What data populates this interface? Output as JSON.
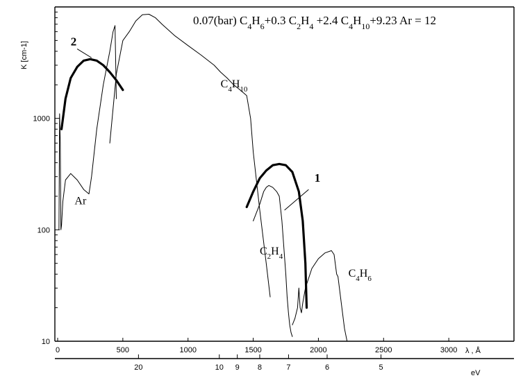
{
  "chart_data": {
    "type": "line",
    "title": "0.07(bar) C4H6+0.3 C2H4 +2.4 C4H10+9.23 Ar = 12",
    "ylabel": "K [cm-1]",
    "xlabel": "λ , Å",
    "xlabel_secondary": "eV",
    "y_scale": "log",
    "xlim": [
      0,
      3500
    ],
    "ylim": [
      10,
      10000
    ],
    "x_ticks": [
      0,
      500,
      1000,
      1500,
      2000,
      2500,
      3000
    ],
    "x_tick_labels": [
      "0",
      "500",
      "1000",
      "1500",
      "2000",
      "2500",
      "3000"
    ],
    "y_ticks": [
      10,
      100,
      1000
    ],
    "y_tick_labels": [
      "10",
      "100",
      "1000"
    ],
    "ev_ticks": [
      {
        "label": "20",
        "wavelength": 620
      },
      {
        "label": "10",
        "wavelength": 1240
      },
      {
        "label": "9",
        "wavelength": 1378
      },
      {
        "label": "8",
        "wavelength": 1550
      },
      {
        "label": "7",
        "wavelength": 1771
      },
      {
        "label": "6",
        "wavelength": 2067
      },
      {
        "label": "5",
        "wavelength": 2480
      }
    ],
    "series": [
      {
        "name": "Ar",
        "style": "thin",
        "x": [
          10,
          15,
          20,
          25,
          30,
          40,
          60,
          100,
          150,
          200,
          240,
          260,
          300,
          350,
          400,
          425,
          440,
          450
        ],
        "y": [
          100,
          1100,
          600,
          100,
          110,
          180,
          280,
          320,
          280,
          230,
          210,
          300,
          800,
          2000,
          4000,
          6000,
          6800,
          1500
        ]
      },
      {
        "name": "C4H10",
        "style": "thin",
        "x": [
          400,
          450,
          500,
          550,
          600,
          650,
          700,
          750,
          800,
          900,
          1000,
          1100,
          1200,
          1250,
          1300,
          1350,
          1400,
          1450,
          1480,
          1500,
          1550,
          1600,
          1630
        ],
        "y": [
          600,
          2500,
          5000,
          6000,
          7500,
          8500,
          8600,
          8000,
          7000,
          5500,
          4500,
          3700,
          3000,
          2600,
          2300,
          2000,
          1800,
          1600,
          1000,
          500,
          150,
          50,
          25
        ]
      },
      {
        "name": "C2H4",
        "style": "thin",
        "x": [
          1500,
          1550,
          1580,
          1600,
          1620,
          1650,
          1680,
          1700,
          1720,
          1750,
          1760,
          1770,
          1780,
          1790,
          1800
        ],
        "y": [
          120,
          170,
          220,
          240,
          250,
          240,
          220,
          200,
          120,
          40,
          25,
          18,
          14,
          12,
          11
        ]
      },
      {
        "name": "C4H6",
        "style": "thin",
        "x": [
          1800,
          1820,
          1840,
          1850,
          1860,
          1870,
          1880,
          1900,
          1950,
          2000,
          2050,
          2100,
          2120,
          2140,
          2150,
          2180,
          2200,
          2220
        ],
        "y": [
          14,
          16,
          20,
          30,
          20,
          18,
          22,
          30,
          45,
          55,
          62,
          65,
          60,
          40,
          38,
          20,
          13,
          10
        ]
      },
      {
        "name": "1",
        "style": "thick",
        "x": [
          1450,
          1500,
          1550,
          1600,
          1650,
          1700,
          1750,
          1800,
          1850,
          1880,
          1900,
          1910
        ],
        "y": [
          160,
          220,
          290,
          340,
          380,
          390,
          380,
          330,
          220,
          120,
          50,
          20
        ]
      },
      {
        "name": "2",
        "style": "thick",
        "x": [
          30,
          60,
          100,
          150,
          200,
          250,
          300,
          350,
          400,
          450,
          500
        ],
        "y": [
          800,
          1500,
          2300,
          2900,
          3300,
          3400,
          3300,
          3000,
          2600,
          2200,
          1800
        ]
      }
    ],
    "curve_labels": [
      {
        "text": "1",
        "x": 1970,
        "y": 270
      },
      {
        "text": "2",
        "x": 100,
        "y": 4500
      }
    ],
    "legend": "none",
    "grid": false
  }
}
